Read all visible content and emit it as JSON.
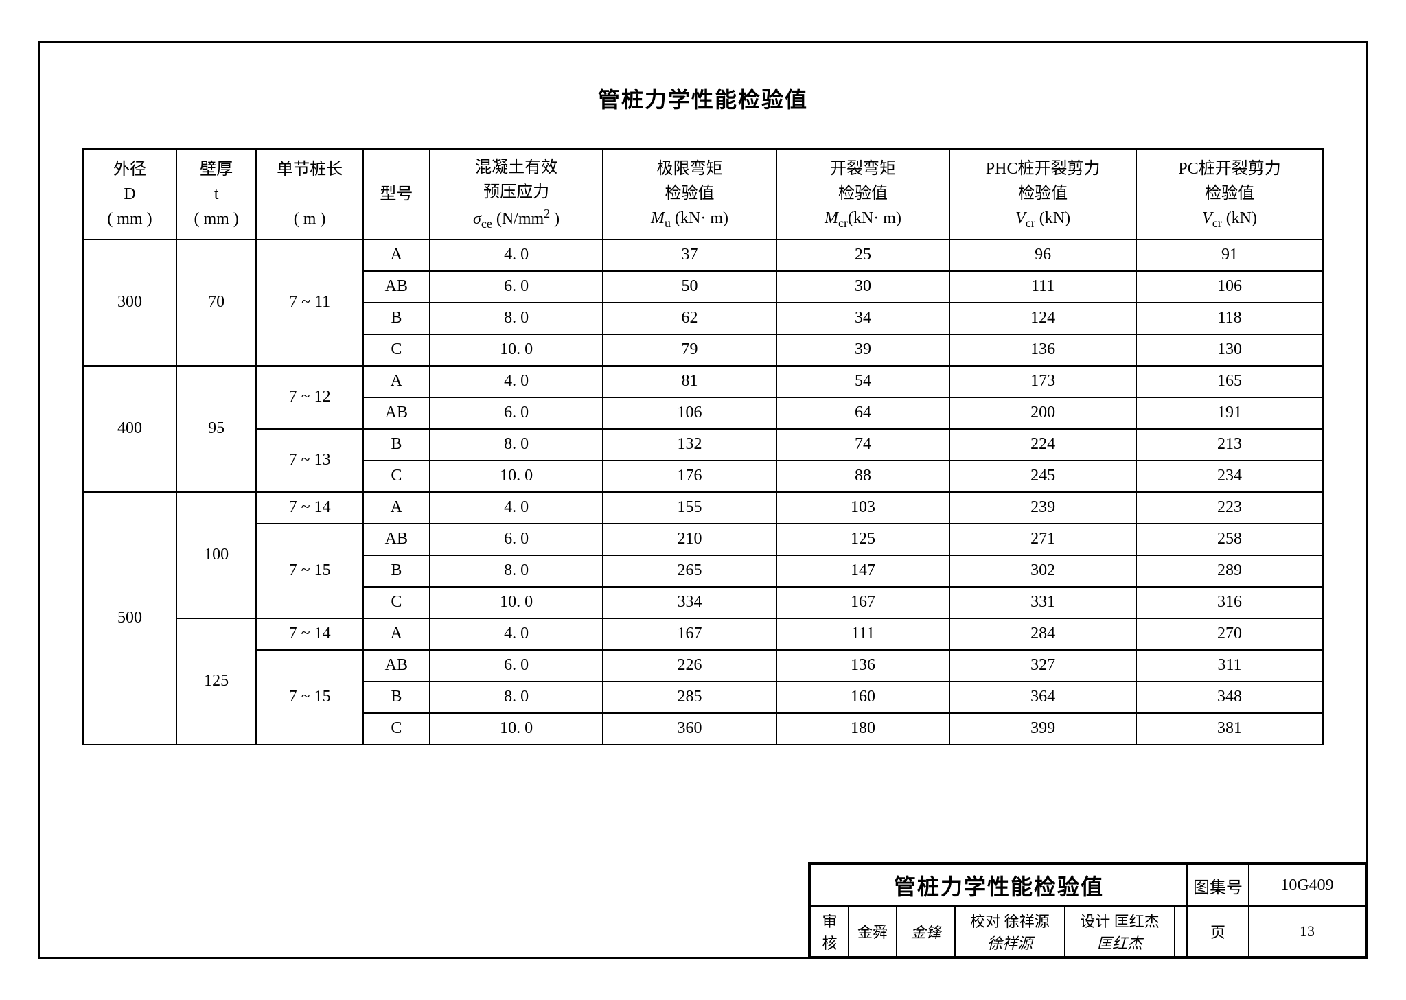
{
  "title": "管桩力学性能检验值",
  "columns": {
    "D": {
      "l1": "外径",
      "l2": "D",
      "l3": "( mm )"
    },
    "t": {
      "l1": "壁厚",
      "l2": "t",
      "l3": "( mm )"
    },
    "L": {
      "l1": "单节桩长",
      "l2": "",
      "l3": "( m )"
    },
    "type": {
      "l1": "型号"
    },
    "sigma": {
      "l1": "混凝土有效",
      "l2": "预压应力",
      "l3a": "σ",
      "l3sub": "ce",
      "l3b": " (N/mm",
      "l3sup": "2",
      "l3c": " )"
    },
    "Mu": {
      "l1": "极限弯矩",
      "l2": "检验值",
      "l3a": "M",
      "l3sub": "u",
      "l3b": " (kN· m)"
    },
    "Mcr": {
      "l1": "开裂弯矩",
      "l2": "检验值",
      "l3a": "M",
      "l3sub": "cr",
      "l3b": "(kN· m)"
    },
    "Vphc": {
      "l1": "PHC桩开裂剪力",
      "l2": "检验值",
      "l3a": "V",
      "l3sub": "cr",
      "l3b": "  (kN)"
    },
    "Vpc": {
      "l1": "PC桩开裂剪力",
      "l2": "检验值",
      "l3a": "V",
      "l3sub": "cr",
      "l3b": "  (kN)"
    }
  },
  "groups": [
    {
      "D": "300",
      "t": "70",
      "segments": [
        {
          "L": "7 ~ 11",
          "rows": [
            {
              "type": "A",
              "sigma": "4. 0",
              "Mu": "37",
              "Mcr": "25",
              "Vphc": "96",
              "Vpc": "91"
            },
            {
              "type": "AB",
              "sigma": "6. 0",
              "Mu": "50",
              "Mcr": "30",
              "Vphc": "111",
              "Vpc": "106"
            },
            {
              "type": "B",
              "sigma": "8. 0",
              "Mu": "62",
              "Mcr": "34",
              "Vphc": "124",
              "Vpc": "118"
            },
            {
              "type": "C",
              "sigma": "10. 0",
              "Mu": "79",
              "Mcr": "39",
              "Vphc": "136",
              "Vpc": "130"
            }
          ]
        }
      ]
    },
    {
      "D": "400",
      "t": "95",
      "segments": [
        {
          "L": "7 ~ 12",
          "rows": [
            {
              "type": "A",
              "sigma": "4. 0",
              "Mu": "81",
              "Mcr": "54",
              "Vphc": "173",
              "Vpc": "165"
            },
            {
              "type": "AB",
              "sigma": "6. 0",
              "Mu": "106",
              "Mcr": "64",
              "Vphc": "200",
              "Vpc": "191"
            }
          ]
        },
        {
          "L": "7 ~ 13",
          "rows": [
            {
              "type": "B",
              "sigma": "8. 0",
              "Mu": "132",
              "Mcr": "74",
              "Vphc": "224",
              "Vpc": "213"
            },
            {
              "type": "C",
              "sigma": "10. 0",
              "Mu": "176",
              "Mcr": "88",
              "Vphc": "245",
              "Vpc": "234"
            }
          ]
        }
      ]
    },
    {
      "D": "500",
      "subs": [
        {
          "t": "100",
          "segments": [
            {
              "L": "7 ~ 14",
              "rows": [
                {
                  "type": "A",
                  "sigma": "4. 0",
                  "Mu": "155",
                  "Mcr": "103",
                  "Vphc": "239",
                  "Vpc": "223"
                }
              ]
            },
            {
              "L": "7 ~ 15",
              "rows": [
                {
                  "type": "AB",
                  "sigma": "6. 0",
                  "Mu": "210",
                  "Mcr": "125",
                  "Vphc": "271",
                  "Vpc": "258"
                },
                {
                  "type": "B",
                  "sigma": "8. 0",
                  "Mu": "265",
                  "Mcr": "147",
                  "Vphc": "302",
                  "Vpc": "289"
                },
                {
                  "type": "C",
                  "sigma": "10. 0",
                  "Mu": "334",
                  "Mcr": "167",
                  "Vphc": "331",
                  "Vpc": "316"
                }
              ]
            }
          ]
        },
        {
          "t": "125",
          "segments": [
            {
              "L": "7 ~ 14",
              "rows": [
                {
                  "type": "A",
                  "sigma": "4. 0",
                  "Mu": "167",
                  "Mcr": "111",
                  "Vphc": "284",
                  "Vpc": "270"
                }
              ]
            },
            {
              "L": "7 ~ 15",
              "rows": [
                {
                  "type": "AB",
                  "sigma": "6. 0",
                  "Mu": "226",
                  "Mcr": "136",
                  "Vphc": "327",
                  "Vpc": "311"
                },
                {
                  "type": "B",
                  "sigma": "8. 0",
                  "Mu": "285",
                  "Mcr": "160",
                  "Vphc": "364",
                  "Vpc": "348"
                },
                {
                  "type": "C",
                  "sigma": "10. 0",
                  "Mu": "360",
                  "Mcr": "180",
                  "Vphc": "399",
                  "Vpc": "381"
                }
              ]
            }
          ]
        }
      ]
    }
  ],
  "titleblock": {
    "title": "管桩力学性能检验值",
    "tuji_label": "图集号",
    "tuji_value": "10G409",
    "review_label": "审核",
    "review_name": "金舜",
    "review_sig": "金锋",
    "check_label": "校对",
    "check_name": "徐祥源",
    "check_sig": "徐祥源",
    "design_label": "设计",
    "design_name": "匡红杰",
    "design_sig": "匡红杰",
    "page_label": "页",
    "page_value": "13"
  }
}
